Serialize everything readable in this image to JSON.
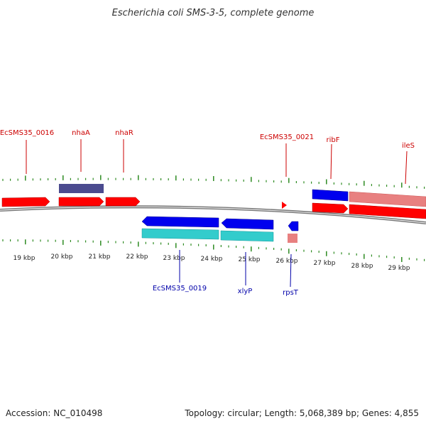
{
  "title": "Escherichia coli SMS-3-5, complete genome",
  "accession": "Accession: NC_010498",
  "summary": "Topology: circular; Length: 5,068,389 bp; Genes: 4,855",
  "colors": {
    "forward_label": "#cc0000",
    "reverse_label": "#0000aa",
    "tick": "#2e8b22",
    "backbone": "#888888",
    "forward_gene": "#ff0000",
    "reverse_gene": "#0000ee",
    "forward_light": "#e88080",
    "reverse_cds": "#33cccc",
    "rna_feature": "#4b4b8f"
  },
  "axis": {
    "ticks": [
      "19 kbp",
      "20 kbp",
      "21 kbp",
      "22 kbp",
      "23 kbp",
      "24 kbp",
      "25 kbp",
      "26 kbp",
      "27 kbp",
      "28 kbp",
      "29 kbp"
    ]
  },
  "genes": {
    "forward": [
      "EcSMS35_0016",
      "nhaA",
      "nhaR",
      "EcSMS35_0021",
      "ribF",
      "ileS"
    ],
    "reverse": [
      "EcSMS35_0019",
      "xlyP",
      "rpsT"
    ]
  }
}
